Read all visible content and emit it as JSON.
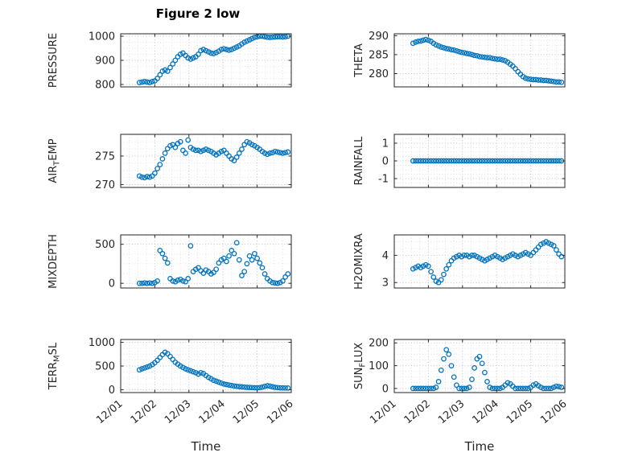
{
  "title": "Figure 2 low",
  "chart_data": {
    "type": "scatter",
    "marker": "o",
    "marker_color": "#0072BD",
    "grid_major_color": "#c3c3c3",
    "grid_minor_color": "#e2e2e2",
    "xlabel": "Time",
    "xlim": [
      1,
      6
    ],
    "x_ticks": [
      1,
      2,
      3,
      4,
      5,
      6
    ],
    "x_tick_labels": [
      "12/01",
      "12/02",
      "12/03",
      "12/04",
      "12/05",
      "12/06"
    ],
    "x": [
      1.55,
      1.625,
      1.7,
      1.775,
      1.85,
      1.925,
      2,
      2.075,
      2.15,
      2.225,
      2.3,
      2.375,
      2.45,
      2.525,
      2.6,
      2.675,
      2.75,
      2.825,
      2.9,
      2.975,
      3.05,
      3.125,
      3.2,
      3.275,
      3.35,
      3.425,
      3.5,
      3.575,
      3.65,
      3.725,
      3.8,
      3.875,
      3.95,
      4.025,
      4.1,
      4.175,
      4.25,
      4.325,
      4.4,
      4.475,
      4.55,
      4.625,
      4.7,
      4.775,
      4.85,
      4.925,
      5,
      5.075,
      5.15,
      5.225,
      5.3,
      5.375,
      5.45,
      5.525,
      5.6,
      5.675,
      5.75,
      5.825,
      5.9
    ],
    "charts": [
      {
        "name": "PRESSURE",
        "ylabel_parts": [
          {
            "text": "PRESSURE"
          }
        ],
        "yticks": [
          800,
          900,
          1000
        ],
        "ylim": [
          790,
          1010
        ],
        "values": [
          808,
          810,
          812,
          810,
          808,
          812,
          815,
          825,
          840,
          855,
          860,
          855,
          870,
          885,
          900,
          915,
          925,
          930,
          920,
          910,
          905,
          910,
          915,
          925,
          940,
          945,
          940,
          935,
          930,
          928,
          932,
          938,
          945,
          948,
          945,
          942,
          945,
          950,
          955,
          960,
          968,
          975,
          980,
          985,
          990,
          995,
          998,
          1000,
          1000,
          998,
          996,
          995,
          996,
          997,
          998,
          998,
          997,
          998,
          1000
        ]
      },
      {
        "name": "THETA",
        "ylabel_parts": [
          {
            "text": "THETA"
          }
        ],
        "yticks": [
          280,
          285,
          290
        ],
        "ylim": [
          276.5,
          290.5
        ],
        "values": [
          288,
          288.3,
          288.5,
          288.6,
          288.8,
          289,
          288.8,
          288.5,
          288,
          287.6,
          287.3,
          287,
          286.8,
          286.6,
          286.5,
          286.3,
          286.2,
          286,
          285.8,
          285.6,
          285.5,
          285.3,
          285.2,
          285,
          284.8,
          284.7,
          284.5,
          284.4,
          284.3,
          284.2,
          284.2,
          284,
          283.9,
          283.8,
          283.8,
          283.6,
          283.4,
          283,
          282.5,
          282,
          281.3,
          280.5,
          279.8,
          279.2,
          278.8,
          278.6,
          278.5,
          278.4,
          278.4,
          278.3,
          278.3,
          278.2,
          278.2,
          278.1,
          278,
          277.9,
          277.8,
          277.8,
          277.7
        ]
      },
      {
        "name": "AIRTEMP",
        "ylabel_parts": [
          {
            "text": "AIR"
          },
          {
            "text": "T",
            "sub": true
          },
          {
            "text": "EMP"
          }
        ],
        "yticks": [
          270,
          275
        ],
        "ylim": [
          269.5,
          278.8
        ],
        "values": [
          271.5,
          271.3,
          271.2,
          271.4,
          271.3,
          271.5,
          272,
          272.8,
          273.5,
          274.5,
          275.5,
          276.3,
          276.8,
          277,
          276.5,
          277.2,
          277.5,
          276,
          275.5,
          277.8,
          276.5,
          276.2,
          276,
          276,
          275.8,
          276,
          276.2,
          276,
          275.8,
          275.5,
          275.2,
          275.5,
          275.8,
          276,
          275.5,
          275,
          274.5,
          274.2,
          274.8,
          275.5,
          276.2,
          277,
          277.5,
          277.3,
          277,
          276.8,
          276.5,
          276.2,
          275.8,
          275.5,
          275.3,
          275.5,
          275.6,
          275.8,
          275.7,
          275.6,
          275.5,
          275.6,
          275.7
        ]
      },
      {
        "name": "RAINFALL",
        "ylabel_parts": [
          {
            "text": "RAINFALL"
          }
        ],
        "yticks": [
          -1,
          0,
          1
        ],
        "ylim": [
          -1.5,
          1.5
        ],
        "values": [
          0,
          0,
          0,
          0,
          0,
          0,
          0,
          0,
          0,
          0,
          0,
          0,
          0,
          0,
          0,
          0,
          0,
          0,
          0,
          0,
          0,
          0,
          0,
          0,
          0,
          0,
          0,
          0,
          0,
          0,
          0,
          0,
          0,
          0,
          0,
          0,
          0,
          0,
          0,
          0,
          0,
          0,
          0,
          0,
          0,
          0,
          0,
          0,
          0,
          0,
          0,
          0,
          0,
          0,
          0,
          0,
          0,
          0,
          0
        ]
      },
      {
        "name": "MIXDEPTH",
        "ylabel_parts": [
          {
            "text": "MIXDEPTH"
          }
        ],
        "yticks": [
          0,
          500
        ],
        "ylim": [
          -60,
          620
        ],
        "values": [
          0,
          0,
          5,
          0,
          5,
          0,
          10,
          30,
          420,
          380,
          320,
          260,
          60,
          30,
          20,
          40,
          50,
          30,
          20,
          60,
          480,
          150,
          180,
          200,
          160,
          130,
          170,
          150,
          120,
          140,
          180,
          260,
          300,
          320,
          280,
          350,
          420,
          380,
          520,
          300,
          100,
          150,
          250,
          350,
          300,
          380,
          320,
          260,
          200,
          120,
          60,
          30,
          10,
          5,
          0,
          10,
          30,
          80,
          120
        ]
      },
      {
        "name": "H2OMIXRA",
        "ylabel_parts": [
          {
            "text": "H2OMIXRA"
          }
        ],
        "yticks": [
          3,
          4
        ],
        "ylim": [
          2.8,
          4.75
        ],
        "values": [
          3.5,
          3.55,
          3.6,
          3.55,
          3.6,
          3.65,
          3.6,
          3.4,
          3.2,
          3.05,
          3,
          3.1,
          3.3,
          3.5,
          3.65,
          3.8,
          3.9,
          3.95,
          4,
          3.95,
          4,
          4,
          3.95,
          4,
          4,
          3.95,
          3.9,
          3.85,
          3.8,
          3.85,
          3.9,
          3.95,
          4,
          3.95,
          3.9,
          3.85,
          3.9,
          3.95,
          4,
          4.05,
          4,
          3.95,
          4,
          4.05,
          4.1,
          4.05,
          4,
          4.1,
          4.2,
          4.3,
          4.4,
          4.45,
          4.5,
          4.45,
          4.4,
          4.35,
          4.2,
          4.05,
          3.95
        ]
      },
      {
        "name": "TERRMSL",
        "ylabel_parts": [
          {
            "text": "TERR"
          },
          {
            "text": "M",
            "sub": true
          },
          {
            "text": "SL"
          }
        ],
        "yticks": [
          0,
          500,
          1000
        ],
        "ylim": [
          -60,
          1060
        ],
        "values": [
          420,
          440,
          460,
          480,
          500,
          530,
          570,
          620,
          680,
          740,
          790,
          760,
          700,
          640,
          580,
          540,
          500,
          470,
          440,
          420,
          400,
          380,
          360,
          330,
          360,
          340,
          300,
          260,
          230,
          200,
          180,
          160,
          140,
          120,
          110,
          100,
          90,
          80,
          70,
          65,
          60,
          55,
          50,
          48,
          45,
          42,
          40,
          45,
          55,
          70,
          85,
          75,
          60,
          50,
          45,
          40,
          38,
          36,
          35
        ]
      },
      {
        "name": "SUNFLUX",
        "ylabel_parts": [
          {
            "text": "SUN"
          },
          {
            "text": "F",
            "sub": true
          },
          {
            "text": "LUX"
          }
        ],
        "yticks": [
          0,
          100,
          200
        ],
        "ylim": [
          -18,
          215
        ],
        "values": [
          0,
          0,
          0,
          0,
          0,
          0,
          0,
          0,
          0,
          5,
          30,
          80,
          130,
          170,
          150,
          100,
          50,
          15,
          0,
          0,
          0,
          0,
          5,
          40,
          90,
          130,
          140,
          110,
          70,
          30,
          5,
          0,
          0,
          0,
          0,
          5,
          15,
          25,
          20,
          10,
          0,
          0,
          0,
          0,
          0,
          0,
          5,
          15,
          20,
          12,
          5,
          0,
          0,
          0,
          0,
          5,
          10,
          8,
          5
        ]
      }
    ]
  }
}
